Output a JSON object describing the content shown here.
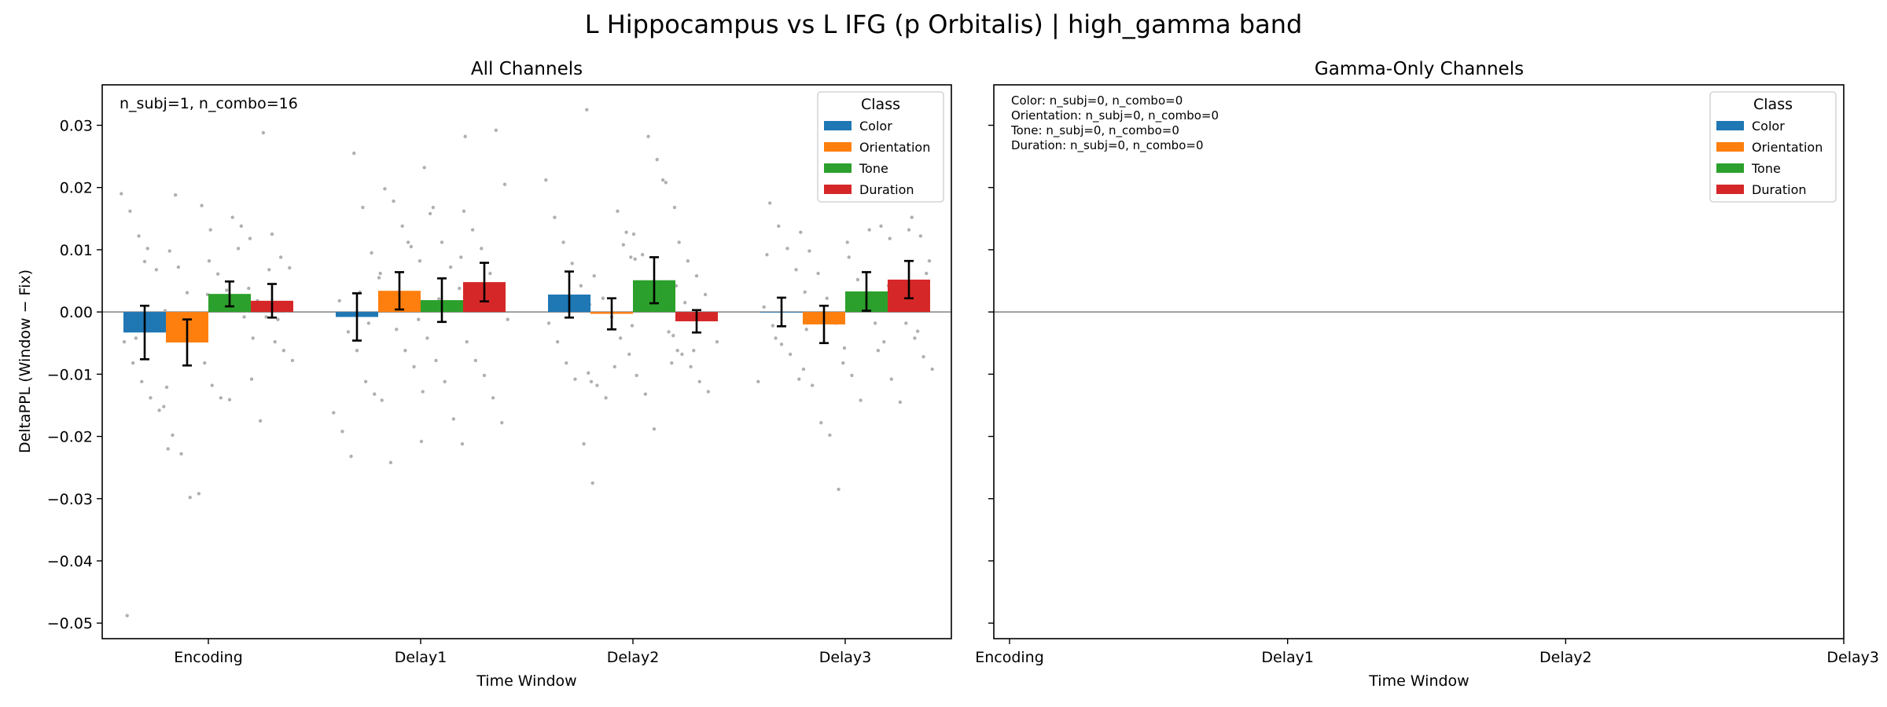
{
  "figure": {
    "suptitle": "L Hippocampus vs L IFG (p Orbitalis)  |  high_gamma band"
  },
  "colors": {
    "Color": "#1f77b4",
    "Orientation": "#ff7f0e",
    "Tone": "#2ca02c",
    "Duration": "#d62728",
    "scatter": "#b0b0b0",
    "zero_line": "#808080"
  },
  "chart_data": [
    {
      "type": "bar",
      "title": "All Channels",
      "xlabel": "Time Window",
      "ylabel": "DeltaPPL (Window − Fix)",
      "categories": [
        "Encoding",
        "Delay1",
        "Delay2",
        "Delay3"
      ],
      "ylim": [
        -0.0525,
        0.0365
      ],
      "yticks": [
        0.03,
        0.02,
        0.01,
        0.0,
        -0.01,
        -0.02,
        -0.03,
        -0.04,
        -0.05
      ],
      "ytick_labels": [
        "0.03",
        "0.02",
        "0.01",
        "0.00",
        "−0.01",
        "−0.02",
        "−0.03",
        "−0.04",
        "−0.05"
      ],
      "annotation": "n_subj=1, n_combo=16",
      "legend": {
        "title": "Class",
        "position": "upper right"
      },
      "grid": false,
      "series": [
        {
          "name": "Color",
          "values": [
            -0.0033,
            -0.0008,
            0.0028,
            0.0
          ],
          "err": [
            0.0043,
            0.0038,
            0.0037,
            0.0023
          ]
        },
        {
          "name": "Orientation",
          "values": [
            -0.0049,
            0.0034,
            -0.0003,
            -0.002
          ],
          "err": [
            0.0037,
            0.003,
            0.0025,
            0.003
          ]
        },
        {
          "name": "Tone",
          "values": [
            0.0029,
            0.0019,
            0.0051,
            0.0033
          ],
          "err": [
            0.002,
            0.0035,
            0.0037,
            0.0031
          ]
        },
        {
          "name": "Duration",
          "values": [
            0.0018,
            0.0048,
            -0.0015,
            0.0052
          ],
          "err": [
            0.0027,
            0.0031,
            0.0018,
            0.003
          ]
        }
      ],
      "scatter_points": [
        [
          [
            0.019,
            0.0162,
            0.0122,
            0.0102,
            0.0068,
            0.0002,
            -0.0048,
            -0.0082,
            -0.0112,
            -0.0138,
            -0.0158,
            -0.022,
            -0.0488,
            -0.0042,
            0.0081
          ],
          [
            0.0171,
            0.0132,
            0.0098,
            0.0072,
            0.0031,
            -0.0038,
            -0.0082,
            -0.0152,
            -0.0198,
            -0.0228,
            -0.0298,
            -0.0292,
            0.0028,
            -0.0121,
            0.0188
          ],
          [
            0.0152,
            0.0138,
            0.0118,
            0.0082,
            0.0061,
            0.0035,
            0.0018,
            -0.0008,
            -0.0042,
            -0.0118,
            -0.0138,
            -0.0141,
            0.0102,
            0.0002
          ],
          [
            0.0288,
            0.0125,
            0.0088,
            0.0071,
            0.0038,
            0.0018,
            -0.0008,
            -0.0048,
            -0.0062,
            -0.0078,
            -0.0108,
            -0.0175,
            0.0068,
            -0.0012,
            0.0002
          ]
        ],
        [
          [
            0.0255,
            0.0168,
            0.0095,
            0.0062,
            0.0018,
            -0.0032,
            -0.0062,
            -0.0112,
            -0.0132,
            -0.0162,
            -0.0192,
            -0.0232,
            0.0032,
            -0.0018
          ],
          [
            0.0198,
            0.0178,
            0.0138,
            0.0105,
            0.0082,
            0.0055,
            0.0012,
            -0.0028,
            -0.0062,
            -0.0088,
            -0.0128,
            -0.0142,
            -0.0242,
            0.0021,
            0.0112
          ],
          [
            0.0282,
            0.0232,
            0.0168,
            0.0112,
            0.0072,
            0.0038,
            -0.0012,
            -0.0042,
            -0.0078,
            -0.0112,
            -0.0172,
            -0.0212,
            -0.0208,
            0.0158,
            0.0021
          ],
          [
            0.0292,
            0.0205,
            0.0162,
            0.0132,
            0.0102,
            0.0062,
            0.0018,
            -0.0012,
            -0.0048,
            -0.0078,
            -0.0102,
            -0.0138,
            -0.0178,
            0.0088,
            0.0031
          ]
        ],
        [
          [
            0.0325,
            0.0212,
            0.0152,
            0.0112,
            0.0078,
            0.0042,
            0.0012,
            -0.0018,
            -0.0048,
            -0.0082,
            -0.0108,
            -0.0212,
            -0.0275,
            0.0022
          ],
          [
            0.0162,
            0.0128,
            0.0085,
            0.0058,
            0.0022,
            -0.0008,
            -0.0042,
            -0.0068,
            -0.0098,
            -0.0118,
            -0.0138,
            -0.0088,
            0.0108,
            -0.0022,
            -0.0112
          ],
          [
            0.0282,
            0.0245,
            0.0208,
            0.0168,
            0.0125,
            0.0092,
            0.0042,
            0.0011,
            -0.0032,
            -0.0062,
            -0.0102,
            -0.0132,
            -0.0188,
            0.0212,
            -0.0082,
            0.0088
          ],
          [
            0.0112,
            0.0082,
            0.0058,
            0.0028,
            -0.0012,
            -0.0038,
            -0.0068,
            -0.0088,
            -0.0112,
            -0.0128,
            -0.0048,
            0.0042,
            0.0015,
            -0.0062
          ]
        ],
        [
          [
            0.0175,
            0.0138,
            0.0102,
            0.0068,
            0.0032,
            0.0008,
            -0.0022,
            -0.0052,
            -0.0068,
            -0.0108,
            -0.0112,
            0.0092,
            -0.0042
          ],
          [
            0.0128,
            0.0098,
            0.0062,
            0.0022,
            -0.0018,
            -0.0058,
            -0.0092,
            -0.0118,
            -0.0178,
            -0.0198,
            -0.0285,
            0.0112,
            -0.0028
          ],
          [
            0.0138,
            0.0118,
            0.0088,
            0.0052,
            0.0022,
            -0.0018,
            -0.0048,
            -0.0082,
            -0.0102,
            -0.0142,
            0.0132,
            -0.0062,
            0.0008
          ],
          [
            0.0152,
            0.0122,
            0.0082,
            0.0042,
            0.0012,
            -0.0018,
            -0.0042,
            -0.0072,
            -0.0092,
            -0.0108,
            -0.0145,
            0.0132,
            -0.0031,
            0.0062
          ]
        ]
      ]
    },
    {
      "type": "bar",
      "title": "Gamma-Only Channels",
      "xlabel": "Time Window",
      "ylabel": "",
      "categories": [
        "Encoding",
        "Delay1",
        "Delay2",
        "Delay3"
      ],
      "ylim": [
        -0.0525,
        0.0365
      ],
      "legend": {
        "title": "Class",
        "position": "upper right"
      },
      "grid": false,
      "annotations": [
        "Color: n_subj=0, n_combo=0",
        "Orientation: n_subj=0, n_combo=0",
        "Tone: n_subj=0, n_combo=0",
        "Duration: n_subj=0, n_combo=0"
      ],
      "series": []
    }
  ]
}
